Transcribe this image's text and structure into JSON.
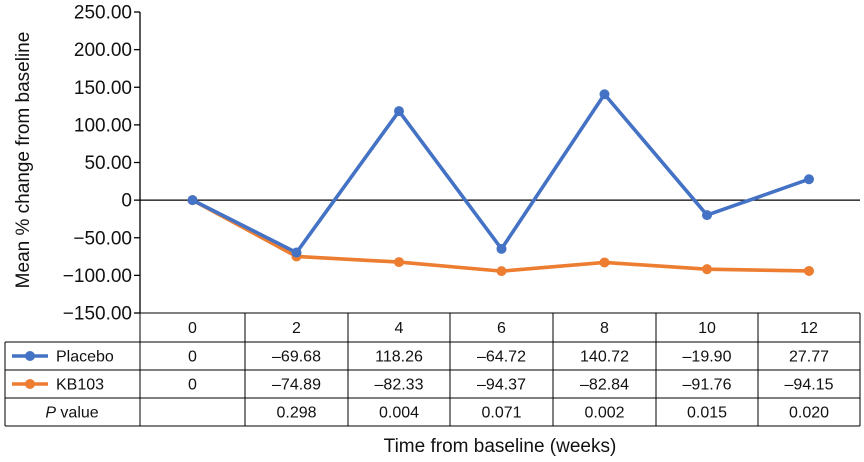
{
  "chart_data": {
    "type": "line",
    "ylabel": "Mean % change from baseline",
    "xlabel": "Time from baseline (weeks)",
    "categories": [
      "0",
      "2",
      "4",
      "6",
      "8",
      "10",
      "12"
    ],
    "ylim": [
      -150,
      250
    ],
    "yticks": [
      "250.00",
      "200.00",
      "150.00",
      "100.00",
      "50.00",
      "0",
      "-50.00",
      "-100.00",
      "-150.00"
    ],
    "ytick_values": [
      250,
      200,
      150,
      100,
      50,
      0,
      -50,
      -100,
      -150
    ],
    "series": [
      {
        "name": "Placebo",
        "color": "#4472C4",
        "values": [
          0,
          -69.68,
          118.26,
          -64.72,
          140.72,
          -19.9,
          27.77
        ],
        "labels": [
          "0",
          "–69.68",
          "118.26",
          "–64.72",
          "140.72",
          "–19.90",
          "27.77"
        ]
      },
      {
        "name": "KB103",
        "color": "#ED7D31",
        "values": [
          0,
          -74.89,
          -82.33,
          -94.37,
          -82.84,
          -91.76,
          -94.15
        ],
        "labels": [
          "0",
          "–74.89",
          "–82.33",
          "–94.37",
          "–82.84",
          "–91.76",
          "–94.15"
        ]
      }
    ],
    "p_value_row": {
      "label_prefix": "P",
      "label_suffix": " value",
      "values": [
        "",
        "0.298",
        "0.004",
        "0.071",
        "0.002",
        "0.015",
        "0.020"
      ]
    },
    "grid": false
  }
}
